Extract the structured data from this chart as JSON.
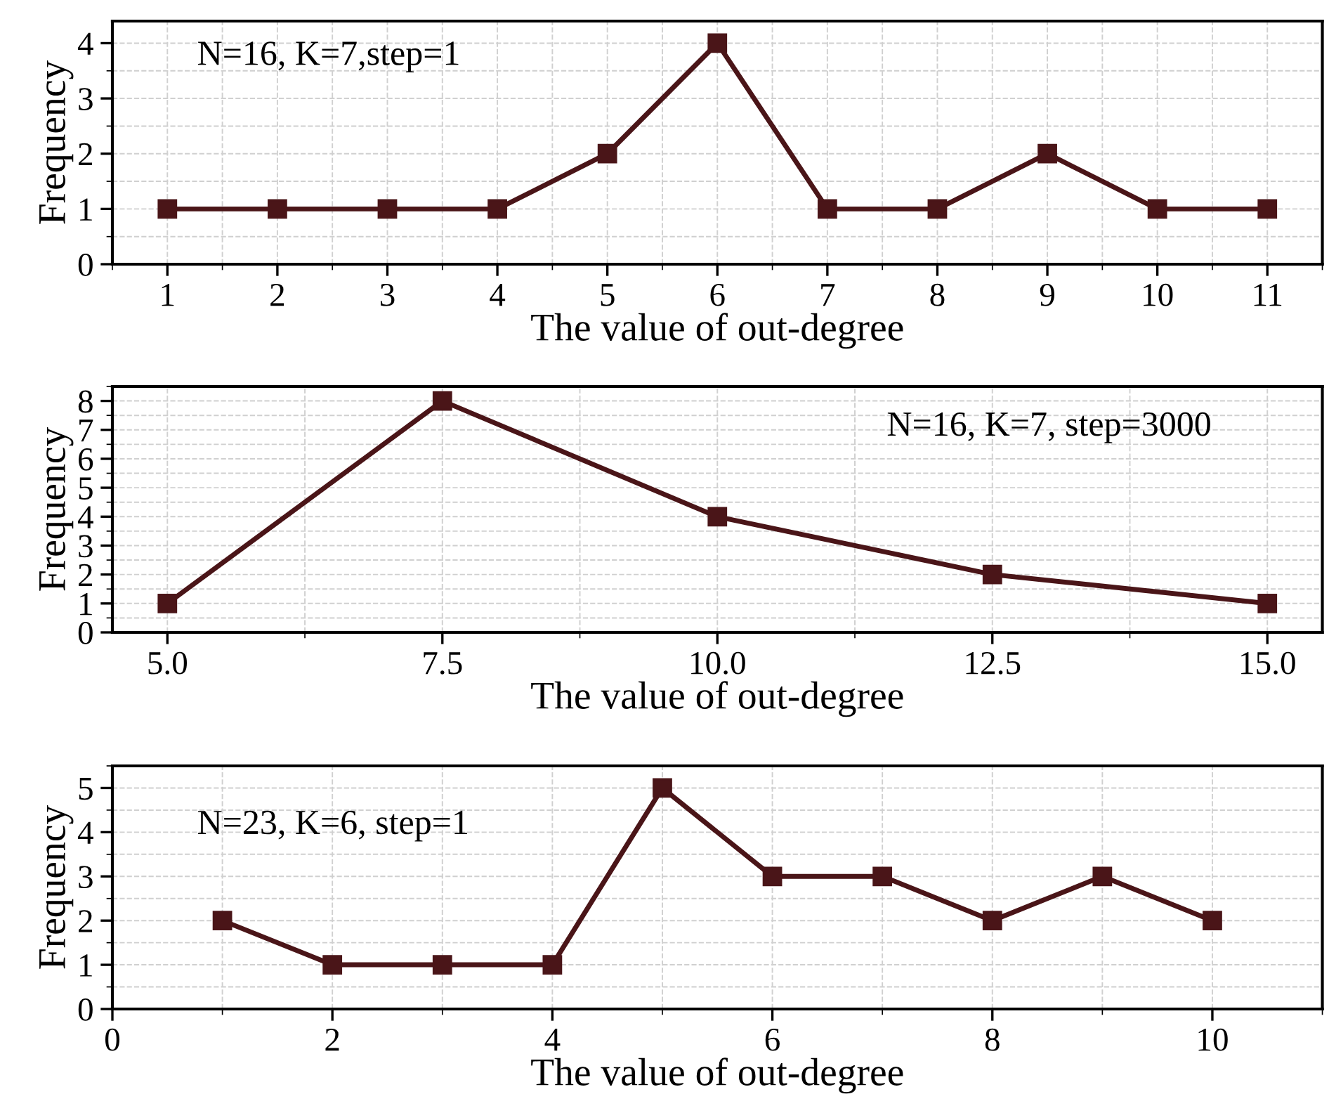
{
  "chart_data": [
    {
      "type": "line",
      "xlabel": "The value of out-degree",
      "ylabel": "Frequency",
      "annotations": [
        "N=16, K=7,step=1"
      ],
      "x": [
        1,
        2,
        3,
        4,
        5,
        6,
        7,
        8,
        9,
        10,
        11
      ],
      "series": [
        {
          "color": "#4a1518",
          "values": [
            1,
            1,
            1,
            1,
            2,
            4,
            1,
            1,
            2,
            1,
            1
          ]
        }
      ],
      "xlim": [
        0.5,
        11.5
      ],
      "xticks": [
        1,
        2,
        3,
        4,
        5,
        6,
        7,
        8,
        9,
        10,
        11
      ],
      "ylim": [
        0,
        4.4
      ],
      "yticks": [
        0,
        1,
        2,
        3,
        4
      ],
      "grid": true,
      "marker": "square",
      "line_style": "solid",
      "legend": false
    },
    {
      "type": "line",
      "xlabel": "The value of out-degree",
      "ylabel": "Frequency",
      "annotations": [
        "N=16, K=7, step=3000"
      ],
      "x": [
        5,
        7.5,
        10,
        12.5,
        15
      ],
      "series": [
        {
          "color": "#4a1518",
          "values": [
            1,
            8,
            4,
            2,
            1
          ]
        }
      ],
      "xlim": [
        4.5,
        15.5
      ],
      "xticks": [
        {
          "value": 5,
          "label": "5.0"
        },
        {
          "value": 7.5,
          "label": "7.5"
        },
        {
          "value": 10,
          "label": "10.0"
        },
        {
          "value": 12.5,
          "label": "12.5"
        },
        {
          "value": 15,
          "label": "15.0"
        }
      ],
      "ylim": [
        0,
        8.5
      ],
      "yticks": [
        0,
        1,
        2,
        3,
        4,
        5,
        6,
        7,
        8
      ],
      "grid": true,
      "marker": "square",
      "line_style": "solid",
      "legend": false
    },
    {
      "type": "line",
      "xlabel": "The value of out-degree",
      "ylabel": "Frequency",
      "annotations": [
        "N=23, K=6, step=1"
      ],
      "x": [
        1,
        2,
        3,
        4,
        5,
        6,
        7,
        8,
        9,
        10
      ],
      "series": [
        {
          "color": "#4a1518",
          "values": [
            2,
            1,
            1,
            1,
            5,
            3,
            3,
            2,
            3,
            2
          ]
        }
      ],
      "xlim": [
        0,
        11
      ],
      "xticks": [
        0,
        2,
        4,
        6,
        8,
        10
      ],
      "ylim": [
        0,
        5.5
      ],
      "yticks": [
        0,
        1,
        2,
        3,
        4,
        5
      ],
      "grid": true,
      "marker": "square",
      "line_style": "solid",
      "legend": false
    }
  ]
}
